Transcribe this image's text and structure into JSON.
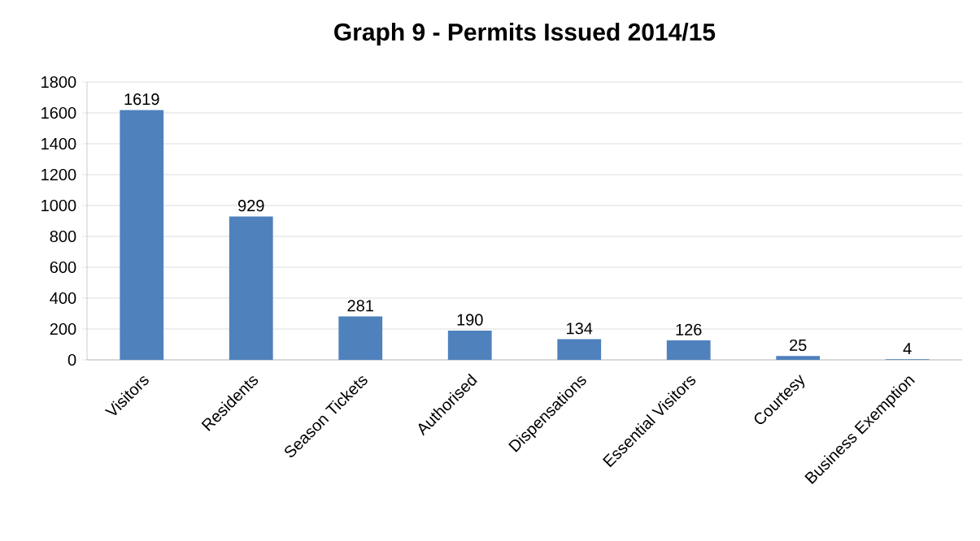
{
  "chart_data": {
    "type": "bar",
    "title": "Graph 9 - Permits Issued 2014/15",
    "categories": [
      "Visitors",
      "Residents",
      "Season Tickets",
      "Authorised",
      "Dispensations",
      "Essential Visitors",
      "Courtesy",
      "Business Exemption"
    ],
    "values": [
      1619,
      929,
      281,
      190,
      134,
      126,
      25,
      4
    ],
    "color": "#4f81bd",
    "ylim": [
      0,
      1800
    ],
    "yticks": [
      0,
      200,
      400,
      600,
      800,
      1000,
      1200,
      1400,
      1600,
      1800
    ],
    "grid": "y",
    "data_labels": true
  }
}
